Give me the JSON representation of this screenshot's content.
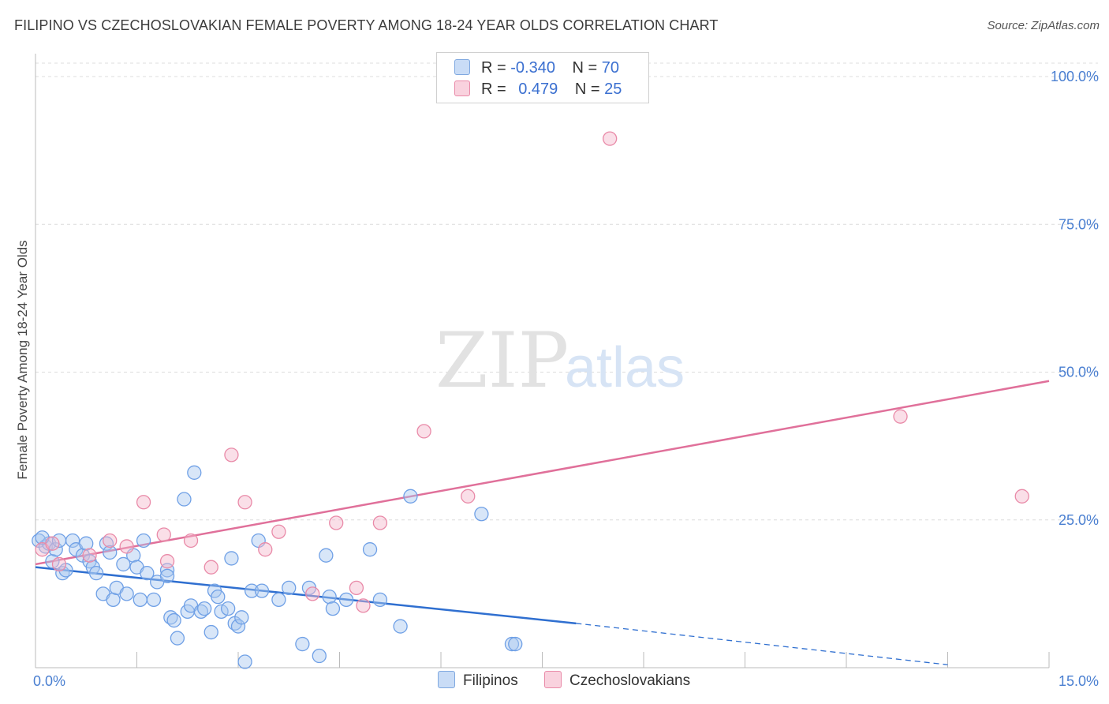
{
  "title": "FILIPINO VS CZECHOSLOVAKIAN FEMALE POVERTY AMONG 18-24 YEAR OLDS CORRELATION CHART",
  "source": "Source: ZipAtlas.com",
  "watermark": {
    "zip": "ZIP",
    "atlas": "atlas"
  },
  "legend": {
    "rows": [
      {
        "r_label": "R =",
        "r_value": "-0.340",
        "n_label": "N =",
        "n_value": "70",
        "color": "#a8c8f0"
      },
      {
        "r_label": "R =",
        "r_value": "0.479",
        "n_label": "N =",
        "n_value": "25",
        "color": "#f5b8cb"
      }
    ]
  },
  "bottom_legend": [
    {
      "label": "Filipinos",
      "color": "#a8c8f0"
    },
    {
      "label": "Czechoslovakians",
      "color": "#f5b8cb"
    }
  ],
  "chart_data": {
    "type": "scatter",
    "ylabel": "Female Poverty Among 18-24 Year Olds",
    "xlabel": "",
    "xlim": [
      0,
      15
    ],
    "ylim": [
      0,
      100
    ],
    "x_tick_labels": [
      "0.0%",
      "15.0%"
    ],
    "y_tick_labels": [
      "25.0%",
      "50.0%",
      "75.0%",
      "100.0%"
    ],
    "y_ticks": [
      25,
      50,
      75,
      100
    ],
    "grid": true,
    "legend_position": "top-center",
    "series": [
      {
        "name": "Filipinos",
        "color": "#6fa0e6",
        "fill": "#a8c8f0",
        "trend": {
          "x0": 0,
          "y0": 17.0,
          "x1": 8.0,
          "y1": 7.5,
          "dash_to_x": 13.5,
          "dash_to_y": 0.5,
          "color": "#2f6fd0"
        },
        "points": [
          [
            0.05,
            21.5
          ],
          [
            0.15,
            20.5
          ],
          [
            0.2,
            21.0
          ],
          [
            0.25,
            18.0
          ],
          [
            0.3,
            20.0
          ],
          [
            0.4,
            16.0
          ],
          [
            0.45,
            16.5
          ],
          [
            0.55,
            21.5
          ],
          [
            0.6,
            20.0
          ],
          [
            0.7,
            19.0
          ],
          [
            0.75,
            21.0
          ],
          [
            0.8,
            18.0
          ],
          [
            0.85,
            17.0
          ],
          [
            0.9,
            16.0
          ],
          [
            1.0,
            12.5
          ],
          [
            1.05,
            21.0
          ],
          [
            1.1,
            19.5
          ],
          [
            1.15,
            11.5
          ],
          [
            1.2,
            13.5
          ],
          [
            1.3,
            17.5
          ],
          [
            1.35,
            12.5
          ],
          [
            1.45,
            19.0
          ],
          [
            1.5,
            17.0
          ],
          [
            1.55,
            11.5
          ],
          [
            1.6,
            21.5
          ],
          [
            1.65,
            16.0
          ],
          [
            1.75,
            11.5
          ],
          [
            1.8,
            14.5
          ],
          [
            1.95,
            16.5
          ],
          [
            2.0,
            8.5
          ],
          [
            2.05,
            8.0
          ],
          [
            2.1,
            5.0
          ],
          [
            2.2,
            28.5
          ],
          [
            2.25,
            9.5
          ],
          [
            2.3,
            10.5
          ],
          [
            2.35,
            33.0
          ],
          [
            2.45,
            9.5
          ],
          [
            2.5,
            10.0
          ],
          [
            2.6,
            6.0
          ],
          [
            2.65,
            13.0
          ],
          [
            2.7,
            12.0
          ],
          [
            2.75,
            9.5
          ],
          [
            2.85,
            10.0
          ],
          [
            2.9,
            18.5
          ],
          [
            2.95,
            7.5
          ],
          [
            3.0,
            7.0
          ],
          [
            3.05,
            8.5
          ],
          [
            3.1,
            1.0
          ],
          [
            3.2,
            13.0
          ],
          [
            3.3,
            21.5
          ],
          [
            3.35,
            13.0
          ],
          [
            3.6,
            11.5
          ],
          [
            3.75,
            13.5
          ],
          [
            3.95,
            4.0
          ],
          [
            4.05,
            13.5
          ],
          [
            4.2,
            2.0
          ],
          [
            4.3,
            19.0
          ],
          [
            4.35,
            12.0
          ],
          [
            4.4,
            10.0
          ],
          [
            4.6,
            11.5
          ],
          [
            4.95,
            20.0
          ],
          [
            5.1,
            11.5
          ],
          [
            5.4,
            7.0
          ],
          [
            5.55,
            29.0
          ],
          [
            6.6,
            26.0
          ],
          [
            7.05,
            4.0
          ],
          [
            7.1,
            4.0
          ],
          [
            1.95,
            15.5
          ],
          [
            0.1,
            22.0
          ],
          [
            0.35,
            21.5
          ]
        ]
      },
      {
        "name": "Czechoslovakians",
        "color": "#e98aa8",
        "fill": "#f5b8cb",
        "trend": {
          "x0": 0,
          "y0": 17.5,
          "x1": 15,
          "y1": 48.5,
          "color": "#e0709a"
        },
        "points": [
          [
            0.1,
            20.0
          ],
          [
            0.25,
            21.0
          ],
          [
            0.35,
            17.5
          ],
          [
            0.8,
            19.0
          ],
          [
            1.1,
            21.5
          ],
          [
            1.35,
            20.5
          ],
          [
            1.6,
            28.0
          ],
          [
            1.9,
            22.5
          ],
          [
            1.95,
            18.0
          ],
          [
            2.3,
            21.5
          ],
          [
            2.6,
            17.0
          ],
          [
            2.9,
            36.0
          ],
          [
            3.1,
            28.0
          ],
          [
            3.4,
            20.0
          ],
          [
            3.6,
            23.0
          ],
          [
            4.1,
            12.5
          ],
          [
            4.45,
            24.5
          ],
          [
            4.75,
            13.5
          ],
          [
            4.85,
            10.5
          ],
          [
            5.1,
            24.5
          ],
          [
            5.75,
            40.0
          ],
          [
            6.4,
            29.0
          ],
          [
            8.5,
            89.5
          ],
          [
            12.8,
            42.5
          ],
          [
            14.6,
            29.0
          ]
        ]
      }
    ]
  }
}
